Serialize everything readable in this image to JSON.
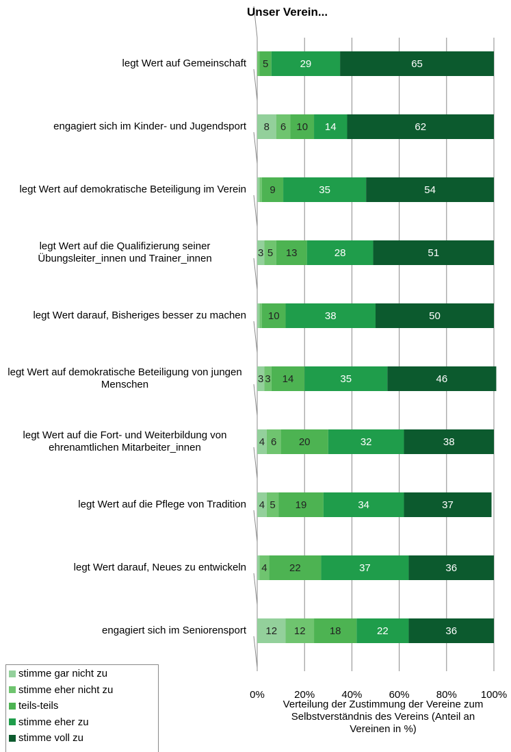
{
  "chart_data": {
    "type": "stacked_barh",
    "title": "Unser Verein...",
    "categories": [
      "legt Wert auf Gemeinschaft",
      "engagiert sich im Kinder- und Jugendsport",
      "legt Wert auf demokratische Beteiligung im Verein",
      "legt Wert auf die Qualifizierung seiner Übungsleiter_innen und Trainer_innen",
      "legt Wert darauf, Bisheriges besser zu machen",
      "legt Wert auf demokratische Beteiligung von jungen Menschen",
      "legt Wert auf die Fort- und Weiterbildung von ehrenamtlichen Mitarbeiter_innen",
      "legt Wert auf die Pflege von Tradition",
      "legt Wert darauf, Neues zu entwickeln",
      "engagiert sich im Seniorensport"
    ],
    "series": [
      {
        "name": "stimme gar nicht zu",
        "color": "#93d09b",
        "values": [
          0,
          8,
          1,
          3,
          1,
          3,
          4,
          4,
          1,
          12
        ]
      },
      {
        "name": "stimme eher nicht zu",
        "color": "#6fc46f",
        "values": [
          1,
          6,
          1,
          5,
          1,
          3,
          6,
          5,
          4,
          12
        ]
      },
      {
        "name": "teils-teils",
        "color": "#4db352",
        "values": [
          5,
          10,
          9,
          13,
          10,
          14,
          20,
          19,
          22,
          18
        ]
      },
      {
        "name": "stimme eher zu",
        "color": "#1f9d4b",
        "values": [
          29,
          14,
          35,
          28,
          38,
          35,
          32,
          34,
          37,
          22
        ]
      },
      {
        "name": "stimme voll zu",
        "color": "#0c5a2e",
        "values": [
          65,
          62,
          54,
          51,
          50,
          46,
          38,
          37,
          36,
          36
        ]
      }
    ],
    "xlim": [
      0,
      100
    ],
    "xticks": [
      {
        "value": 0,
        "label": "0%"
      },
      {
        "value": 20,
        "label": "20%"
      },
      {
        "value": 40,
        "label": "40%"
      },
      {
        "value": 60,
        "label": "60%"
      },
      {
        "value": 80,
        "label": "80%"
      },
      {
        "value": 100,
        "label": "100%"
      }
    ],
    "xlabel": "Verteilung der Zustimmung  der Vereine zum Selbstverständnis des Vereins (Anteil an Vereinen in %)",
    "grid": true,
    "legend": "lower left"
  }
}
